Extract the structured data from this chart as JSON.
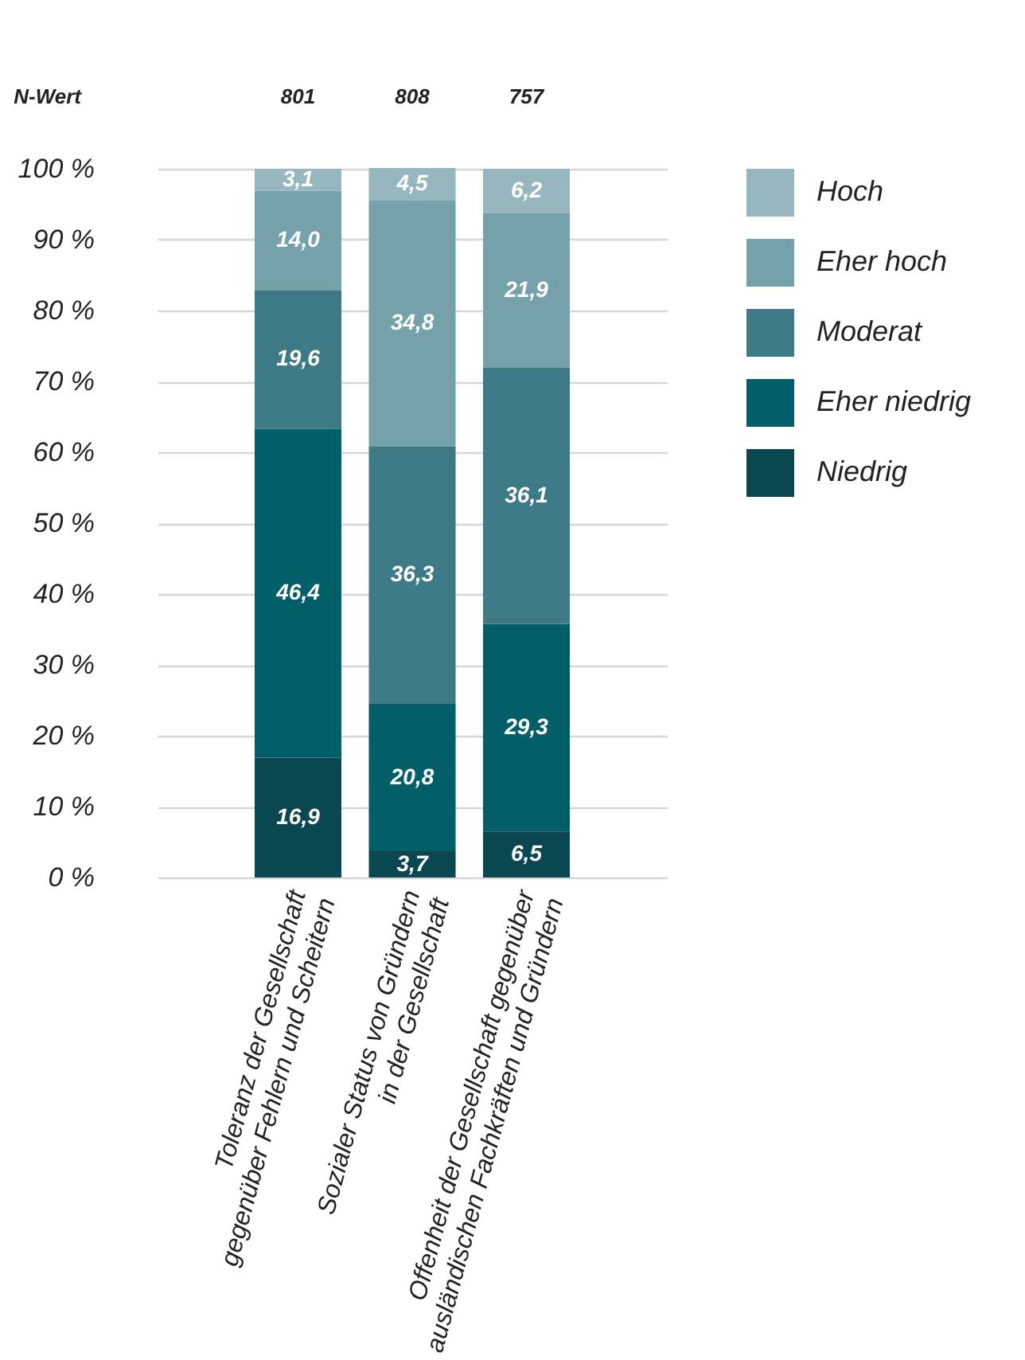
{
  "chart_data": {
    "type": "bar",
    "stacked": true,
    "categories": [
      "Toleranz der Gesellschaft\ngegenüber Fehlern und Scheitern",
      "Sozialer Status von Gründern\nin der Gesellschaft",
      "Offenheit der Gesellschaft gegenüber\nausländischen Fachkräften und Gründern"
    ],
    "series": [
      {
        "name": "Niedrig",
        "color": "#0b4750",
        "values": [
          16.9,
          3.7,
          6.5
        ],
        "value_labels": [
          "16,9",
          "3,7",
          "6,5"
        ]
      },
      {
        "name": "Eher niedrig",
        "color": "#025e69",
        "values": [
          46.4,
          20.8,
          29.3
        ],
        "value_labels": [
          "46,4",
          "20,8",
          "29,3"
        ]
      },
      {
        "name": "Moderat",
        "color": "#3e7a86",
        "values": [
          19.6,
          36.3,
          36.1
        ],
        "value_labels": [
          "19,6",
          "36,3",
          "36,1"
        ]
      },
      {
        "name": "Eher hoch",
        "color": "#74a1aa",
        "values": [
          14.0,
          34.8,
          21.9
        ],
        "value_labels": [
          "14,0",
          "34,8",
          "21,9"
        ]
      },
      {
        "name": "Hoch",
        "color": "#97b7bf",
        "values": [
          3.1,
          4.5,
          6.2
        ],
        "value_labels": [
          "3,1",
          "4,5",
          "6,2"
        ]
      }
    ],
    "ylim": [
      0,
      100
    ],
    "yticks": [
      {
        "value": 0,
        "label": "0 %"
      },
      {
        "value": 10,
        "label": "10 %"
      },
      {
        "value": 20,
        "label": "20 %"
      },
      {
        "value": 30,
        "label": "30 %"
      },
      {
        "value": 40,
        "label": "40 %"
      },
      {
        "value": 50,
        "label": "50 %"
      },
      {
        "value": 60,
        "label": "60 %"
      },
      {
        "value": 70,
        "label": "70 %"
      },
      {
        "value": 80,
        "label": "80 %"
      },
      {
        "value": 90,
        "label": "90 %"
      },
      {
        "value": 100,
        "label": "100 %"
      }
    ],
    "grid": "y",
    "legend": "right",
    "annotations": [
      "N-Wert",
      "801",
      "808",
      "757"
    ]
  }
}
